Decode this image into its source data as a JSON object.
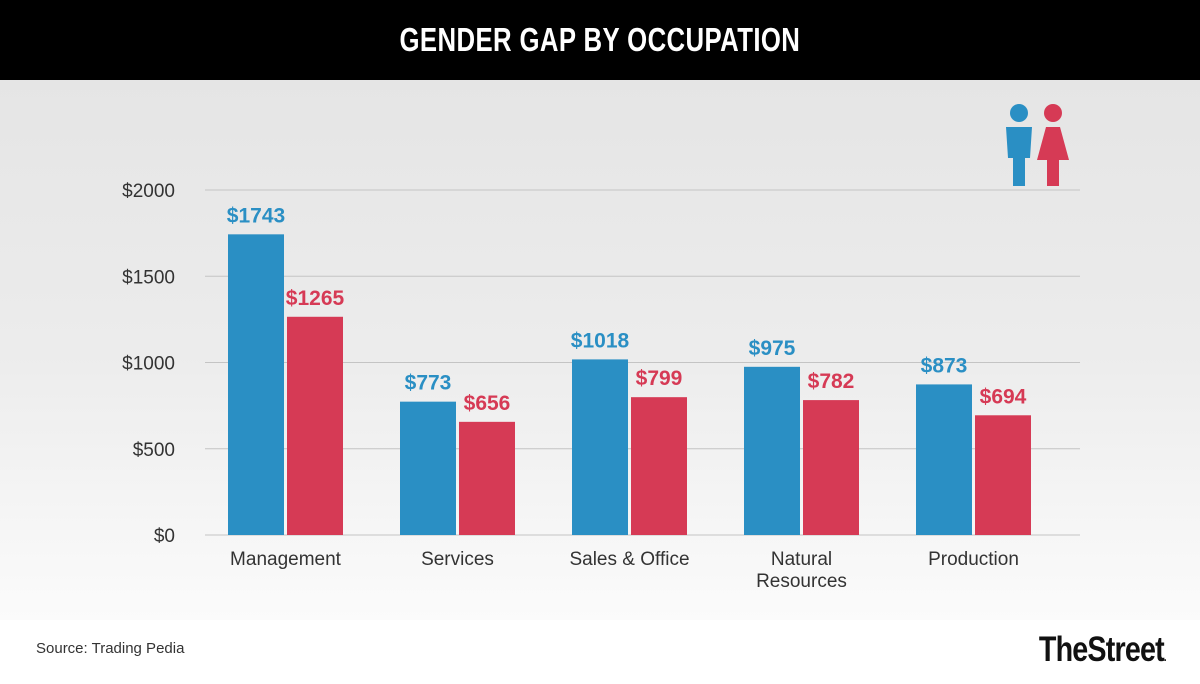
{
  "header": {
    "title": "GENDER GAP BY OCCUPATION"
  },
  "legend_icons": [
    {
      "name": "male-icon",
      "series": "Men",
      "color": "#2a8fc4"
    },
    {
      "name": "female-icon",
      "series": "Women",
      "color": "#d63a55"
    }
  ],
  "footer": {
    "source": "Source: Trading Pedia",
    "brand": "TheStreet",
    "brand_dot": "."
  },
  "colors": {
    "men": "#2a8fc4",
    "women": "#d63a55"
  },
  "chart_data": {
    "type": "bar",
    "title": "GENDER GAP BY OCCUPATION",
    "xlabel": "",
    "ylabel": "",
    "categories": [
      "Management",
      "Services",
      "Sales & Office",
      "Natural Resources",
      "Production"
    ],
    "category_lines": [
      [
        "Management"
      ],
      [
        "Services"
      ],
      [
        "Sales & Office"
      ],
      [
        "Natural",
        "Resources"
      ],
      [
        "Production"
      ]
    ],
    "series": [
      {
        "name": "Men",
        "color": "#2a8fc4",
        "values": [
          1743,
          773,
          1018,
          975,
          873
        ],
        "labels": [
          "$1743",
          "$773",
          "$1018",
          "$975",
          "$873"
        ]
      },
      {
        "name": "Women",
        "color": "#d63a55",
        "values": [
          1265,
          656,
          799,
          782,
          694
        ],
        "labels": [
          "$1265",
          "$656",
          "$799",
          "$782",
          "$694"
        ]
      }
    ],
    "yticks": [
      0,
      500,
      1000,
      1500,
      2000
    ],
    "ytick_labels": [
      "$0",
      "$500",
      "$1000",
      "$1500",
      "$2000"
    ],
    "ylim": [
      0,
      2000
    ],
    "grid": true,
    "legend": "top-right (pictogram icons)"
  }
}
